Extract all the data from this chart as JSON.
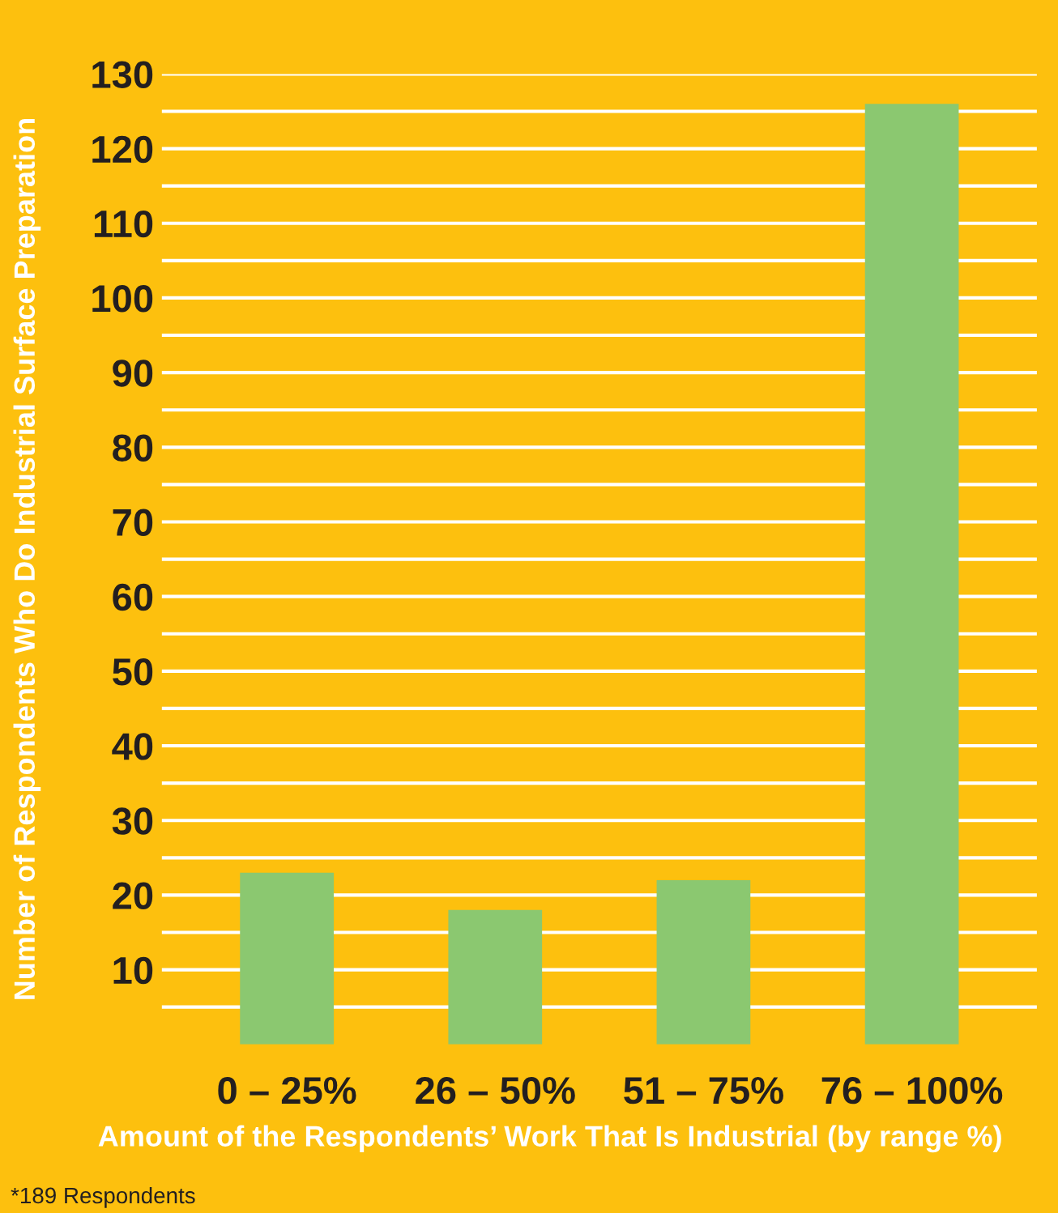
{
  "chart_data": {
    "type": "bar",
    "categories": [
      "0 – 25%",
      "26 – 50%",
      "51 – 75%",
      "76 – 100%"
    ],
    "values": [
      23,
      18,
      22,
      126
    ],
    "color": "#8bc870",
    "xlabel": "Amount of the Respondents’ Work That Is Industrial (by range %)",
    "ylabel": "Number of Respondents Who Do Industrial Surface Preparation",
    "annotations": [
      "*189 Respondents"
    ],
    "ylim": [
      0,
      130
    ],
    "yticks": [
      {
        "value": 5,
        "label": null
      },
      10,
      {
        "value": 15,
        "label": null
      },
      20,
      {
        "value": 25,
        "label": null
      },
      30,
      {
        "value": 35,
        "label": null
      },
      40,
      {
        "value": 45,
        "label": null
      },
      50,
      {
        "value": 55,
        "label": null
      },
      60,
      {
        "value": 65,
        "label": null
      },
      70,
      {
        "value": 75,
        "label": null
      },
      80,
      {
        "value": 85,
        "label": null
      },
      90,
      {
        "value": 95,
        "label": null
      },
      100,
      {
        "value": 105,
        "label": null
      },
      110,
      {
        "value": 115,
        "label": null
      },
      120,
      {
        "value": 125,
        "label": null
      },
      130
    ],
    "grid": "y"
  }
}
